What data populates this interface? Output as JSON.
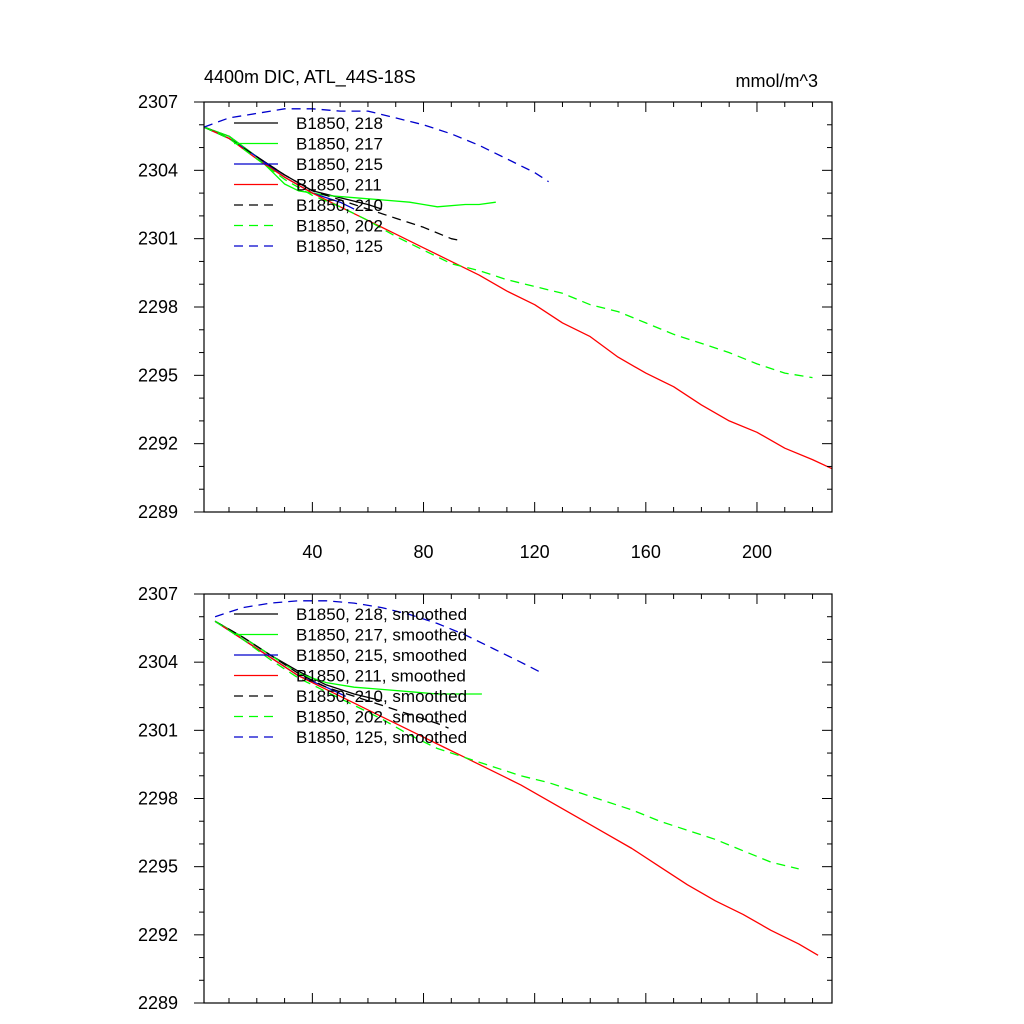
{
  "page_title": "4400m DIC, ATL_44S-18S",
  "units": "mmol/m^3",
  "colors": {
    "black": "#000000",
    "green": "#00ff00",
    "blue": "#0000cc",
    "red": "#ff0000"
  },
  "chart_data": [
    {
      "type": "line",
      "title": "4400m DIC, ATL_44S-18S",
      "units_label": "mmol/m^3",
      "xlim": [
        1,
        227
      ],
      "ylim": [
        2289,
        2307
      ],
      "x_ticks": [
        40,
        80,
        120,
        160,
        200
      ],
      "x_tick_labels": [
        "40",
        "80",
        "120",
        "160",
        "200"
      ],
      "y_ticks": [
        2289,
        2292,
        2295,
        2298,
        2301,
        2304,
        2307
      ],
      "y_tick_labels": [
        "2289",
        "2292",
        "2295",
        "2298",
        "2301",
        "2304",
        "2307"
      ],
      "legend_position": "top-left",
      "series": [
        {
          "name": "B1850, 218",
          "color": "#000000",
          "dash": "solid",
          "points": [
            [
              1,
              2305.9
            ],
            [
              10,
              2305.5
            ],
            [
              20,
              2304.6
            ],
            [
              30,
              2303.8
            ],
            [
              40,
              2303.1
            ],
            [
              50,
              2302.8
            ],
            [
              60,
              2302.5
            ],
            [
              65,
              2302.3
            ]
          ]
        },
        {
          "name": "B1850, 217",
          "color": "#00ff00",
          "dash": "solid",
          "points": [
            [
              1,
              2305.9
            ],
            [
              10,
              2305.5
            ],
            [
              20,
              2304.6
            ],
            [
              25,
              2304.0
            ],
            [
              30,
              2303.4
            ],
            [
              35,
              2303.1
            ],
            [
              45,
              2302.9
            ],
            [
              55,
              2302.8
            ],
            [
              65,
              2302.7
            ],
            [
              75,
              2302.6
            ],
            [
              80,
              2302.5
            ],
            [
              85,
              2302.4
            ],
            [
              95,
              2302.5
            ],
            [
              100,
              2302.5
            ],
            [
              106,
              2302.6
            ]
          ]
        },
        {
          "name": "B1850, 215",
          "color": "#0000cc",
          "dash": "solid",
          "points": [
            [
              1,
              2305.9
            ],
            [
              10,
              2305.4
            ],
            [
              20,
              2304.6
            ],
            [
              30,
              2303.7
            ],
            [
              40,
              2303.0
            ],
            [
              50,
              2302.6
            ],
            [
              55,
              2302.3
            ]
          ]
        },
        {
          "name": "B1850, 211",
          "color": "#ff0000",
          "dash": "solid",
          "points": [
            [
              1,
              2305.9
            ],
            [
              10,
              2305.4
            ],
            [
              20,
              2304.5
            ],
            [
              30,
              2303.7
            ],
            [
              40,
              2303.0
            ],
            [
              50,
              2302.4
            ],
            [
              60,
              2301.8
            ],
            [
              70,
              2301.2
            ],
            [
              80,
              2300.6
            ],
            [
              90,
              2300.0
            ],
            [
              100,
              2299.4
            ],
            [
              110,
              2298.7
            ],
            [
              120,
              2298.1
            ],
            [
              130,
              2297.3
            ],
            [
              140,
              2296.7
            ],
            [
              150,
              2295.8
            ],
            [
              160,
              2295.1
            ],
            [
              170,
              2294.5
            ],
            [
              180,
              2293.7
            ],
            [
              190,
              2293.0
            ],
            [
              200,
              2292.5
            ],
            [
              210,
              2291.8
            ],
            [
              220,
              2291.3
            ],
            [
              227,
              2290.9
            ]
          ]
        },
        {
          "name": "B1850, 210",
          "color": "#000000",
          "dash": "dashed",
          "points": [
            [
              1,
              2305.9
            ],
            [
              10,
              2305.4
            ],
            [
              20,
              2304.6
            ],
            [
              30,
              2303.8
            ],
            [
              40,
              2303.1
            ],
            [
              50,
              2302.7
            ],
            [
              60,
              2302.3
            ],
            [
              70,
              2301.9
            ],
            [
              80,
              2301.5
            ],
            [
              90,
              2301.0
            ],
            [
              94,
              2300.9
            ]
          ]
        },
        {
          "name": "B1850, 202",
          "color": "#00ff00",
          "dash": "dashed",
          "points": [
            [
              1,
              2305.9
            ],
            [
              10,
              2305.4
            ],
            [
              20,
              2304.5
            ],
            [
              30,
              2303.6
            ],
            [
              40,
              2302.9
            ],
            [
              50,
              2302.4
            ],
            [
              60,
              2301.8
            ],
            [
              70,
              2301.1
            ],
            [
              80,
              2300.5
            ],
            [
              90,
              2299.9
            ],
            [
              100,
              2299.6
            ],
            [
              110,
              2299.2
            ],
            [
              120,
              2298.9
            ],
            [
              130,
              2298.6
            ],
            [
              140,
              2298.1
            ],
            [
              150,
              2297.8
            ],
            [
              160,
              2297.3
            ],
            [
              170,
              2296.8
            ],
            [
              180,
              2296.4
            ],
            [
              190,
              2296.0
            ],
            [
              200,
              2295.5
            ],
            [
              210,
              2295.1
            ],
            [
              220,
              2294.9
            ]
          ]
        },
        {
          "name": "B1850, 125",
          "color": "#0000cc",
          "dash": "dashed",
          "points": [
            [
              1,
              2305.9
            ],
            [
              10,
              2306.3
            ],
            [
              20,
              2306.5
            ],
            [
              30,
              2306.7
            ],
            [
              40,
              2306.7
            ],
            [
              50,
              2306.6
            ],
            [
              60,
              2306.6
            ],
            [
              70,
              2306.3
            ],
            [
              80,
              2306.0
            ],
            [
              90,
              2305.6
            ],
            [
              100,
              2305.1
            ],
            [
              110,
              2304.5
            ],
            [
              120,
              2303.9
            ],
            [
              125,
              2303.5
            ]
          ]
        }
      ]
    },
    {
      "type": "line",
      "xlim": [
        1,
        227
      ],
      "ylim": [
        2289,
        2307
      ],
      "x_ticks": [
        40,
        80,
        120,
        160,
        200
      ],
      "x_tick_labels": [],
      "y_ticks": [
        2289,
        2292,
        2295,
        2298,
        2301,
        2304,
        2307
      ],
      "y_tick_labels": [
        "2289",
        "2292",
        "2295",
        "2298",
        "2301",
        "2304",
        "2307"
      ],
      "legend_position": "top-left",
      "series": [
        {
          "name": "B1850, 218, smoothed",
          "color": "#000000",
          "dash": "solid",
          "points": [
            [
              5,
              2305.8
            ],
            [
              15,
              2305.1
            ],
            [
              25,
              2304.3
            ],
            [
              35,
              2303.6
            ],
            [
              45,
              2303.0
            ],
            [
              55,
              2302.6
            ],
            [
              65,
              2302.3
            ]
          ]
        },
        {
          "name": "B1850, 217, smoothed",
          "color": "#00ff00",
          "dash": "solid",
          "points": [
            [
              5,
              2305.8
            ],
            [
              15,
              2305.1
            ],
            [
              25,
              2304.3
            ],
            [
              35,
              2303.5
            ],
            [
              45,
              2303.1
            ],
            [
              55,
              2302.9
            ],
            [
              65,
              2302.8
            ],
            [
              75,
              2302.7
            ],
            [
              85,
              2302.6
            ],
            [
              95,
              2302.6
            ],
            [
              101,
              2302.6
            ]
          ]
        },
        {
          "name": "B1850, 215, smoothed",
          "color": "#0000cc",
          "dash": "solid",
          "points": [
            [
              5,
              2305.8
            ],
            [
              15,
              2305.0
            ],
            [
              25,
              2304.2
            ],
            [
              35,
              2303.4
            ],
            [
              45,
              2302.9
            ],
            [
              52,
              2302.5
            ]
          ]
        },
        {
          "name": "B1850, 211, smoothed",
          "color": "#ff0000",
          "dash": "solid",
          "points": [
            [
              5,
              2305.8
            ],
            [
              15,
              2305.0
            ],
            [
              25,
              2304.2
            ],
            [
              35,
              2303.4
            ],
            [
              45,
              2302.8
            ],
            [
              55,
              2302.2
            ],
            [
              65,
              2301.6
            ],
            [
              75,
              2301.0
            ],
            [
              85,
              2300.4
            ],
            [
              95,
              2299.8
            ],
            [
              105,
              2299.2
            ],
            [
              115,
              2298.6
            ],
            [
              125,
              2297.9
            ],
            [
              135,
              2297.2
            ],
            [
              145,
              2296.5
            ],
            [
              155,
              2295.8
            ],
            [
              165,
              2295.0
            ],
            [
              175,
              2294.2
            ],
            [
              185,
              2293.5
            ],
            [
              195,
              2292.9
            ],
            [
              205,
              2292.2
            ],
            [
              215,
              2291.6
            ],
            [
              222,
              2291.1
            ]
          ]
        },
        {
          "name": "B1850, 210, smoothed",
          "color": "#000000",
          "dash": "dashed",
          "points": [
            [
              5,
              2305.8
            ],
            [
              15,
              2305.1
            ],
            [
              25,
              2304.3
            ],
            [
              35,
              2303.5
            ],
            [
              45,
              2302.9
            ],
            [
              55,
              2302.5
            ],
            [
              65,
              2302.1
            ],
            [
              75,
              2301.7
            ],
            [
              85,
              2301.3
            ],
            [
              89,
              2301.1
            ]
          ]
        },
        {
          "name": "B1850, 202, smoothed",
          "color": "#00ff00",
          "dash": "dashed",
          "points": [
            [
              5,
              2305.8
            ],
            [
              15,
              2305.0
            ],
            [
              25,
              2304.1
            ],
            [
              35,
              2303.3
            ],
            [
              45,
              2302.7
            ],
            [
              55,
              2302.1
            ],
            [
              65,
              2301.5
            ],
            [
              75,
              2300.8
            ],
            [
              85,
              2300.2
            ],
            [
              95,
              2299.8
            ],
            [
              105,
              2299.4
            ],
            [
              115,
              2299.0
            ],
            [
              125,
              2298.7
            ],
            [
              135,
              2298.3
            ],
            [
              145,
              2297.9
            ],
            [
              155,
              2297.5
            ],
            [
              165,
              2297.0
            ],
            [
              175,
              2296.6
            ],
            [
              185,
              2296.2
            ],
            [
              195,
              2295.7
            ],
            [
              205,
              2295.2
            ],
            [
              215,
              2294.9
            ]
          ]
        },
        {
          "name": "B1850, 125, smoothed",
          "color": "#0000cc",
          "dash": "dashed",
          "points": [
            [
              5,
              2306.0
            ],
            [
              15,
              2306.4
            ],
            [
              25,
              2306.6
            ],
            [
              35,
              2306.7
            ],
            [
              45,
              2306.7
            ],
            [
              55,
              2306.6
            ],
            [
              65,
              2306.4
            ],
            [
              75,
              2306.1
            ],
            [
              85,
              2305.7
            ],
            [
              95,
              2305.2
            ],
            [
              105,
              2304.6
            ],
            [
              115,
              2304.0
            ],
            [
              123,
              2303.5
            ]
          ]
        }
      ]
    }
  ]
}
